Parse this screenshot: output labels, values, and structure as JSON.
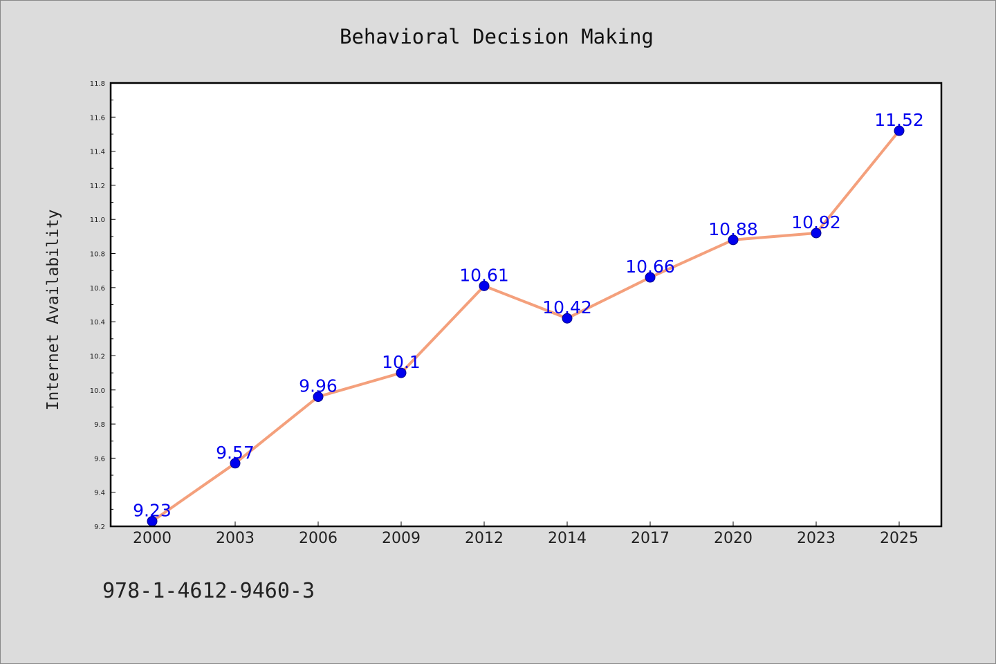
{
  "footer": {
    "isbn": "978-1-4612-9460-3"
  },
  "colors": {
    "background": "#dcdcdc",
    "plot_bg": "#ffffff",
    "line": "#f4a07c",
    "marker": "#0000ee",
    "label": "#0000ee"
  },
  "chart_data": {
    "type": "line",
    "title": "Behavioral Decision Making",
    "xlabel": "",
    "ylabel": "Internet Availability",
    "categories": [
      "2000",
      "2003",
      "2006",
      "2009",
      "2012",
      "2014",
      "2017",
      "2020",
      "2023",
      "2025"
    ],
    "values": [
      9.23,
      9.57,
      9.96,
      10.1,
      10.61,
      10.42,
      10.66,
      10.88,
      10.92,
      11.52
    ],
    "data_labels": [
      "9.23",
      "9.57",
      "9.96",
      "10.1",
      "10.61",
      "10.42",
      "10.66",
      "10.88",
      "10.92",
      "11.52"
    ],
    "ylim": [
      9.2,
      11.8
    ],
    "yticks": [
      "9.2",
      "9.4",
      "9.6",
      "9.8",
      "10.0",
      "10.2",
      "10.4",
      "10.6",
      "10.8",
      "11.0",
      "11.2",
      "11.4",
      "11.6",
      "11.8"
    ],
    "grid": false,
    "legend": "none"
  }
}
